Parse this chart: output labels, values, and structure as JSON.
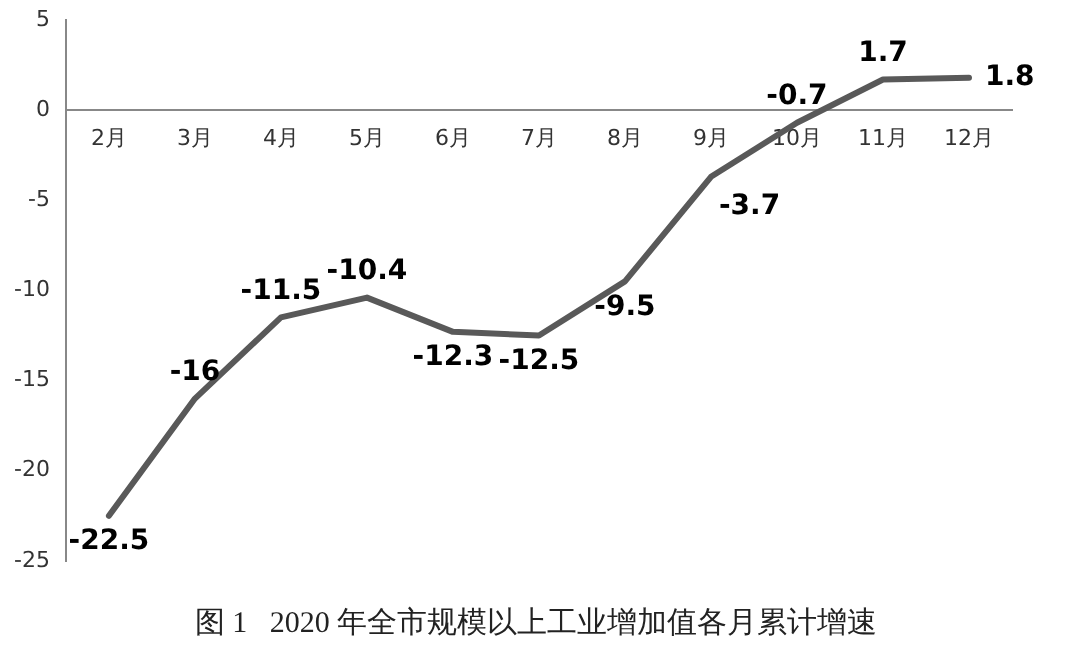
{
  "chart_data": {
    "type": "line",
    "title": "图 1   2020 年全市规模以上工业增加值各月累计增速",
    "categories": [
      "2月",
      "3月",
      "4月",
      "5月",
      "6月",
      "7月",
      "8月",
      "9月",
      "10月",
      "11月",
      "12月"
    ],
    "series": [
      {
        "color": "#595959",
        "values": [
          -22.5,
          -16,
          -11.5,
          -10.4,
          -12.3,
          -12.5,
          -9.5,
          -3.7,
          -0.7,
          1.7,
          1.8
        ]
      }
    ],
    "ylim": [
      -25,
      5
    ],
    "yticks": [
      -25,
      -20,
      -15,
      -10,
      -5,
      0,
      5
    ],
    "grid": false,
    "legend": false,
    "data_labels": true,
    "marker": "none",
    "line_style": "solid"
  }
}
